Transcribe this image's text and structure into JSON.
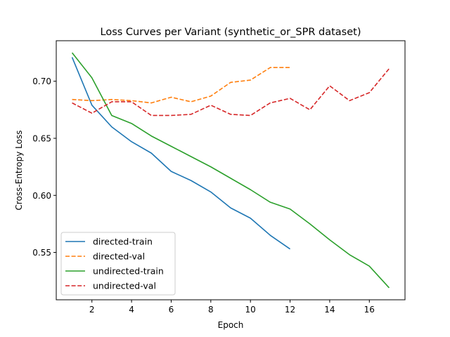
{
  "chart_data": {
    "type": "line",
    "title": "Loss Curves per Variant (synthetic_or_SPR dataset)",
    "xlabel": "Epoch",
    "ylabel": "Cross-Entropy Loss",
    "xlim": [
      0.2,
      17.8
    ],
    "ylim": [
      0.5085,
      0.7355
    ],
    "xticks": [
      2,
      4,
      6,
      8,
      10,
      12,
      14,
      16
    ],
    "yticks": [
      0.55,
      0.6,
      0.65,
      0.7
    ],
    "ytick_labels": [
      "0.55",
      "0.60",
      "0.65",
      "0.70"
    ],
    "grid": false,
    "legend_position": "lower-left",
    "series": [
      {
        "name": "directed-train",
        "color": "#1f77b4",
        "dash": "solid",
        "x": [
          1,
          2,
          3,
          4,
          5,
          6,
          7,
          8,
          9,
          10,
          11,
          12
        ],
        "values": [
          0.721,
          0.679,
          0.66,
          0.647,
          0.637,
          0.621,
          0.613,
          0.603,
          0.589,
          0.58,
          0.565,
          0.553
        ]
      },
      {
        "name": "directed-val",
        "color": "#ff7f0e",
        "dash": "dashed",
        "x": [
          1,
          2,
          3,
          4,
          5,
          6,
          7,
          8,
          9,
          10,
          11,
          12
        ],
        "values": [
          0.684,
          0.683,
          0.684,
          0.683,
          0.681,
          0.686,
          0.682,
          0.687,
          0.699,
          0.701,
          0.712,
          0.712
        ]
      },
      {
        "name": "undirected-train",
        "color": "#2ca02c",
        "dash": "solid",
        "x": [
          1,
          2,
          3,
          4,
          5,
          6,
          7,
          8,
          9,
          10,
          11,
          12,
          13,
          14,
          15,
          16,
          17
        ],
        "values": [
          0.725,
          0.703,
          0.67,
          0.663,
          0.652,
          0.643,
          0.634,
          0.625,
          0.615,
          0.605,
          0.594,
          0.588,
          0.575,
          0.561,
          0.548,
          0.538,
          0.519
        ]
      },
      {
        "name": "undirected-val",
        "color": "#d62728",
        "dash": "dashed",
        "x": [
          1,
          2,
          3,
          4,
          5,
          6,
          7,
          8,
          9,
          10,
          11,
          12,
          13,
          14,
          15,
          16,
          17
        ],
        "values": [
          0.681,
          0.672,
          0.682,
          0.682,
          0.67,
          0.67,
          0.671,
          0.679,
          0.671,
          0.67,
          0.681,
          0.685,
          0.675,
          0.696,
          0.683,
          0.69,
          0.711
        ]
      }
    ]
  }
}
